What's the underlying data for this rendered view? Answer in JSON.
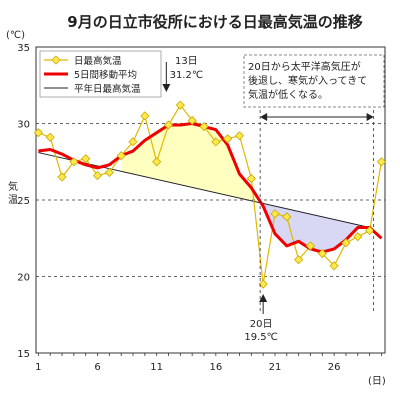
{
  "chart_data": {
    "type": "line",
    "title": "9月の日立市役所における日最高気温の推移",
    "unit_label": "(℃)",
    "ylabel": "気温",
    "x_unit_label": "(日)",
    "ylim": [
      15,
      35
    ],
    "xlim": [
      1,
      30
    ],
    "yticks": [
      15,
      20,
      25,
      30,
      35
    ],
    "xticks": [
      1,
      6,
      11,
      16,
      21,
      26
    ],
    "grid": "dashed-horizontal",
    "legend_position": "top-left",
    "series": [
      {
        "name": "日最高気温",
        "color": "#e8c800",
        "marker": "diamond",
        "x": [
          1,
          2,
          3,
          4,
          5,
          6,
          7,
          8,
          9,
          10,
          11,
          12,
          13,
          14,
          15,
          16,
          17,
          18,
          19,
          20,
          21,
          22,
          23,
          24,
          25,
          26,
          27,
          28,
          29,
          30
        ],
        "values": [
          29.4,
          29.1,
          26.5,
          27.5,
          27.7,
          26.6,
          26.8,
          27.9,
          28.8,
          30.5,
          27.5,
          29.9,
          31.2,
          30.2,
          29.8,
          28.8,
          29.0,
          29.2,
          26.4,
          19.5,
          24.1,
          23.9,
          21.1,
          22.0,
          21.5,
          20.7,
          22.2,
          22.6,
          23.0,
          27.5
        ]
      },
      {
        "name": "5日間移動平均",
        "color": "#ee0000",
        "x": [
          1,
          2,
          3,
          4,
          5,
          6,
          7,
          8,
          9,
          10,
          11,
          12,
          13,
          14,
          15,
          16,
          17,
          18,
          19,
          20,
          21,
          22,
          23,
          24,
          25,
          26,
          27,
          28,
          29,
          30
        ],
        "values": [
          28.2,
          28.3,
          28.0,
          27.6,
          27.3,
          27.1,
          27.3,
          27.9,
          28.2,
          28.9,
          29.4,
          29.9,
          29.9,
          30.0,
          29.8,
          29.6,
          28.6,
          26.7,
          25.8,
          24.6,
          22.8,
          22.0,
          22.3,
          21.8,
          21.6,
          21.8,
          22.4,
          23.2,
          23.2,
          22.5
        ]
      },
      {
        "name": "平年日最高気温",
        "color": "#222222",
        "x": [
          1,
          29
        ],
        "values": [
          28.1,
          23.2
        ]
      }
    ],
    "annotations": [
      {
        "lines": [
          "13日",
          "31.2℃"
        ],
        "arrow": "down",
        "x": 13
      },
      {
        "lines": [
          "20日",
          "19.5℃"
        ],
        "arrow": "up",
        "x": 20
      },
      {
        "lines": [
          "20日から太平洋高気圧が",
          "後退し、寒気が入ってきて",
          "気温が低くなる。"
        ],
        "box": "dashed",
        "x_range": [
          20,
          29
        ]
      }
    ],
    "fill_colors": {
      "above_normal": "#ffffc0",
      "below_normal": "#d8d8f4"
    }
  }
}
